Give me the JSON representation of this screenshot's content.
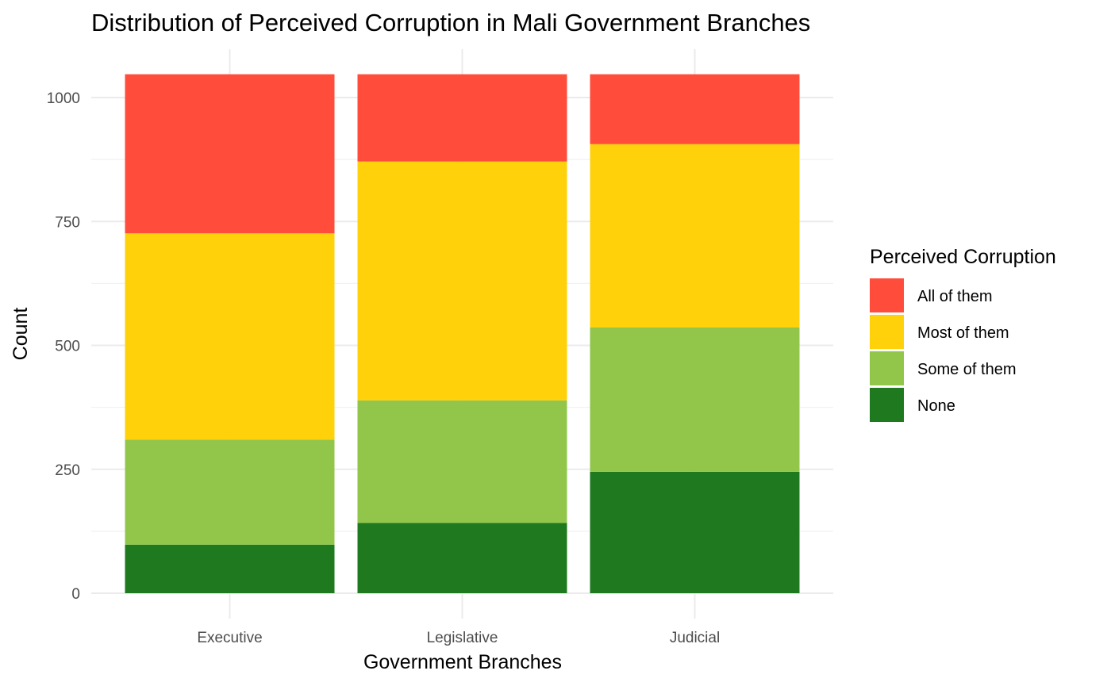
{
  "chart_data": {
    "type": "bar",
    "stacked": true,
    "title": "Distribution of Perceived Corruption in Mali Government Branches",
    "xlabel": "Government Branches",
    "ylabel": "Count",
    "ylim": [
      0,
      1050
    ],
    "yticks": [
      0,
      250,
      500,
      750,
      1000
    ],
    "grid": true,
    "categories": [
      "Executive",
      "Legislative",
      "Judicial"
    ],
    "series": [
      {
        "name": "None",
        "color": "#1f7a1f",
        "values": [
          98,
          142,
          245
        ]
      },
      {
        "name": "Some of them",
        "color": "#92c64a",
        "values": [
          212,
          247,
          291
        ]
      },
      {
        "name": "Most of them",
        "color": "#ffd10a",
        "values": [
          416,
          482,
          370
        ]
      },
      {
        "name": "All of them",
        "color": "#ff4c3b",
        "values": [
          321,
          176,
          141
        ]
      }
    ],
    "legend": {
      "title": "Perceived Corruption",
      "position": "right",
      "order": [
        "All of them",
        "Most of them",
        "Some of them",
        "None"
      ]
    }
  }
}
